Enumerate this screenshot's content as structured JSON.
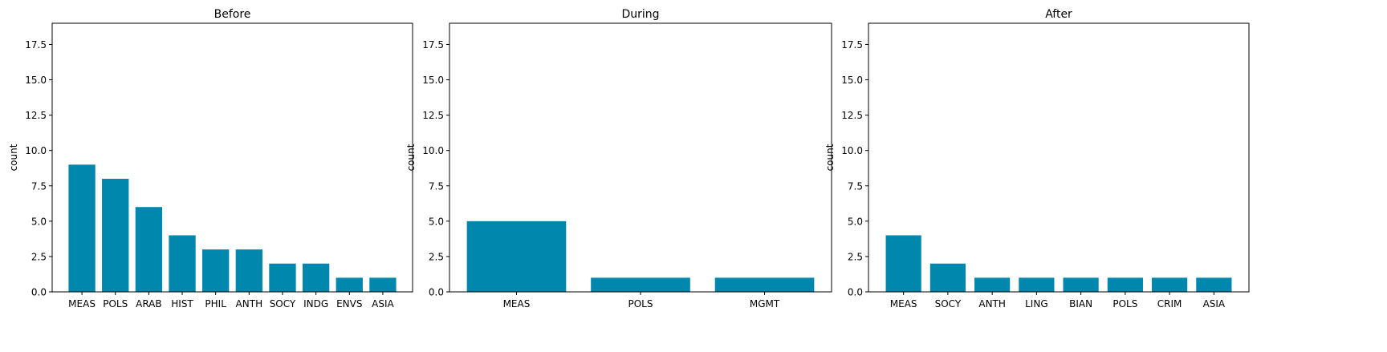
{
  "chart_data": [
    {
      "type": "bar",
      "title": "Before",
      "xlabel": "",
      "ylabel": "count",
      "categories": [
        "MEAS",
        "POLS",
        "ARAB",
        "HIST",
        "PHIL",
        "ANTH",
        "SOCY",
        "INDG",
        "ENVS",
        "ASIA"
      ],
      "values": [
        9,
        8,
        6,
        4,
        3,
        3,
        2,
        2,
        1,
        1
      ],
      "ylim": [
        0,
        19
      ],
      "yticks": [
        "0.0",
        "2.5",
        "5.0",
        "7.5",
        "10.0",
        "12.5",
        "15.0",
        "17.5"
      ],
      "grid": false,
      "color": "#0087ad"
    },
    {
      "type": "bar",
      "title": "During",
      "xlabel": "",
      "ylabel": "count",
      "categories": [
        "MEAS",
        "POLS",
        "MGMT"
      ],
      "values": [
        5,
        1,
        1
      ],
      "ylim": [
        0,
        19
      ],
      "yticks": [
        "0.0",
        "2.5",
        "5.0",
        "7.5",
        "10.0",
        "12.5",
        "15.0",
        "17.5"
      ],
      "grid": false,
      "color": "#0087ad"
    },
    {
      "type": "bar",
      "title": "After",
      "xlabel": "",
      "ylabel": "count",
      "categories": [
        "MEAS",
        "SOCY",
        "ANTH",
        "LING",
        "BIAN",
        "POLS",
        "CRIM",
        "ASIA"
      ],
      "values": [
        4,
        2,
        1,
        1,
        1,
        1,
        1,
        1
      ],
      "ylim": [
        0,
        19
      ],
      "yticks": [
        "0.0",
        "2.5",
        "5.0",
        "7.5",
        "10.0",
        "12.5",
        "15.0",
        "17.5"
      ],
      "grid": false,
      "color": "#0087ad"
    }
  ]
}
